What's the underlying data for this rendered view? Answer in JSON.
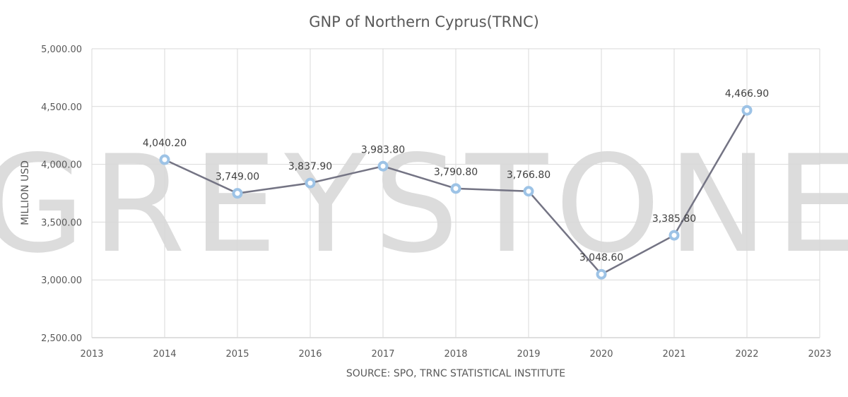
{
  "watermark": "GREYSTONE",
  "chart_data": {
    "type": "line",
    "title": "GNP of Northern Cyprus(TRNC)",
    "xlabel": "SOURCE: SPO, TRNC STATISTICAL INSTITUTE",
    "ylabel": "MILLION USD",
    "xlim": [
      2013,
      2023
    ],
    "ylim": [
      2500,
      5000
    ],
    "x_ticks": [
      "2013",
      "2014",
      "2015",
      "2016",
      "2017",
      "2018",
      "2019",
      "2020",
      "2021",
      "2022",
      "2023"
    ],
    "y_ticks": [
      "2,500.00",
      "3,000.00",
      "3,500.00",
      "4,000.00",
      "4,500.00",
      "5,000.00"
    ],
    "y_tick_values": [
      2500,
      3000,
      3500,
      4000,
      4500,
      5000
    ],
    "grid": true,
    "legend": "none",
    "series": [
      {
        "x": [
          2014,
          2015,
          2016,
          2017,
          2018,
          2019,
          2020,
          2021,
          2022
        ],
        "values": [
          4040.2,
          3749.0,
          3837.9,
          3983.8,
          3790.8,
          3766.8,
          3048.6,
          3385.8,
          4466.9
        ],
        "data_labels": [
          "4,040.20",
          "3,749.00",
          "3,837.90",
          "3,983.80",
          "3,790.80",
          "3,766.80",
          "3,048.60",
          "3,385.80",
          "4,466.90"
        ],
        "line_color": "#747484",
        "marker_color": "#9dc3e6"
      }
    ]
  }
}
